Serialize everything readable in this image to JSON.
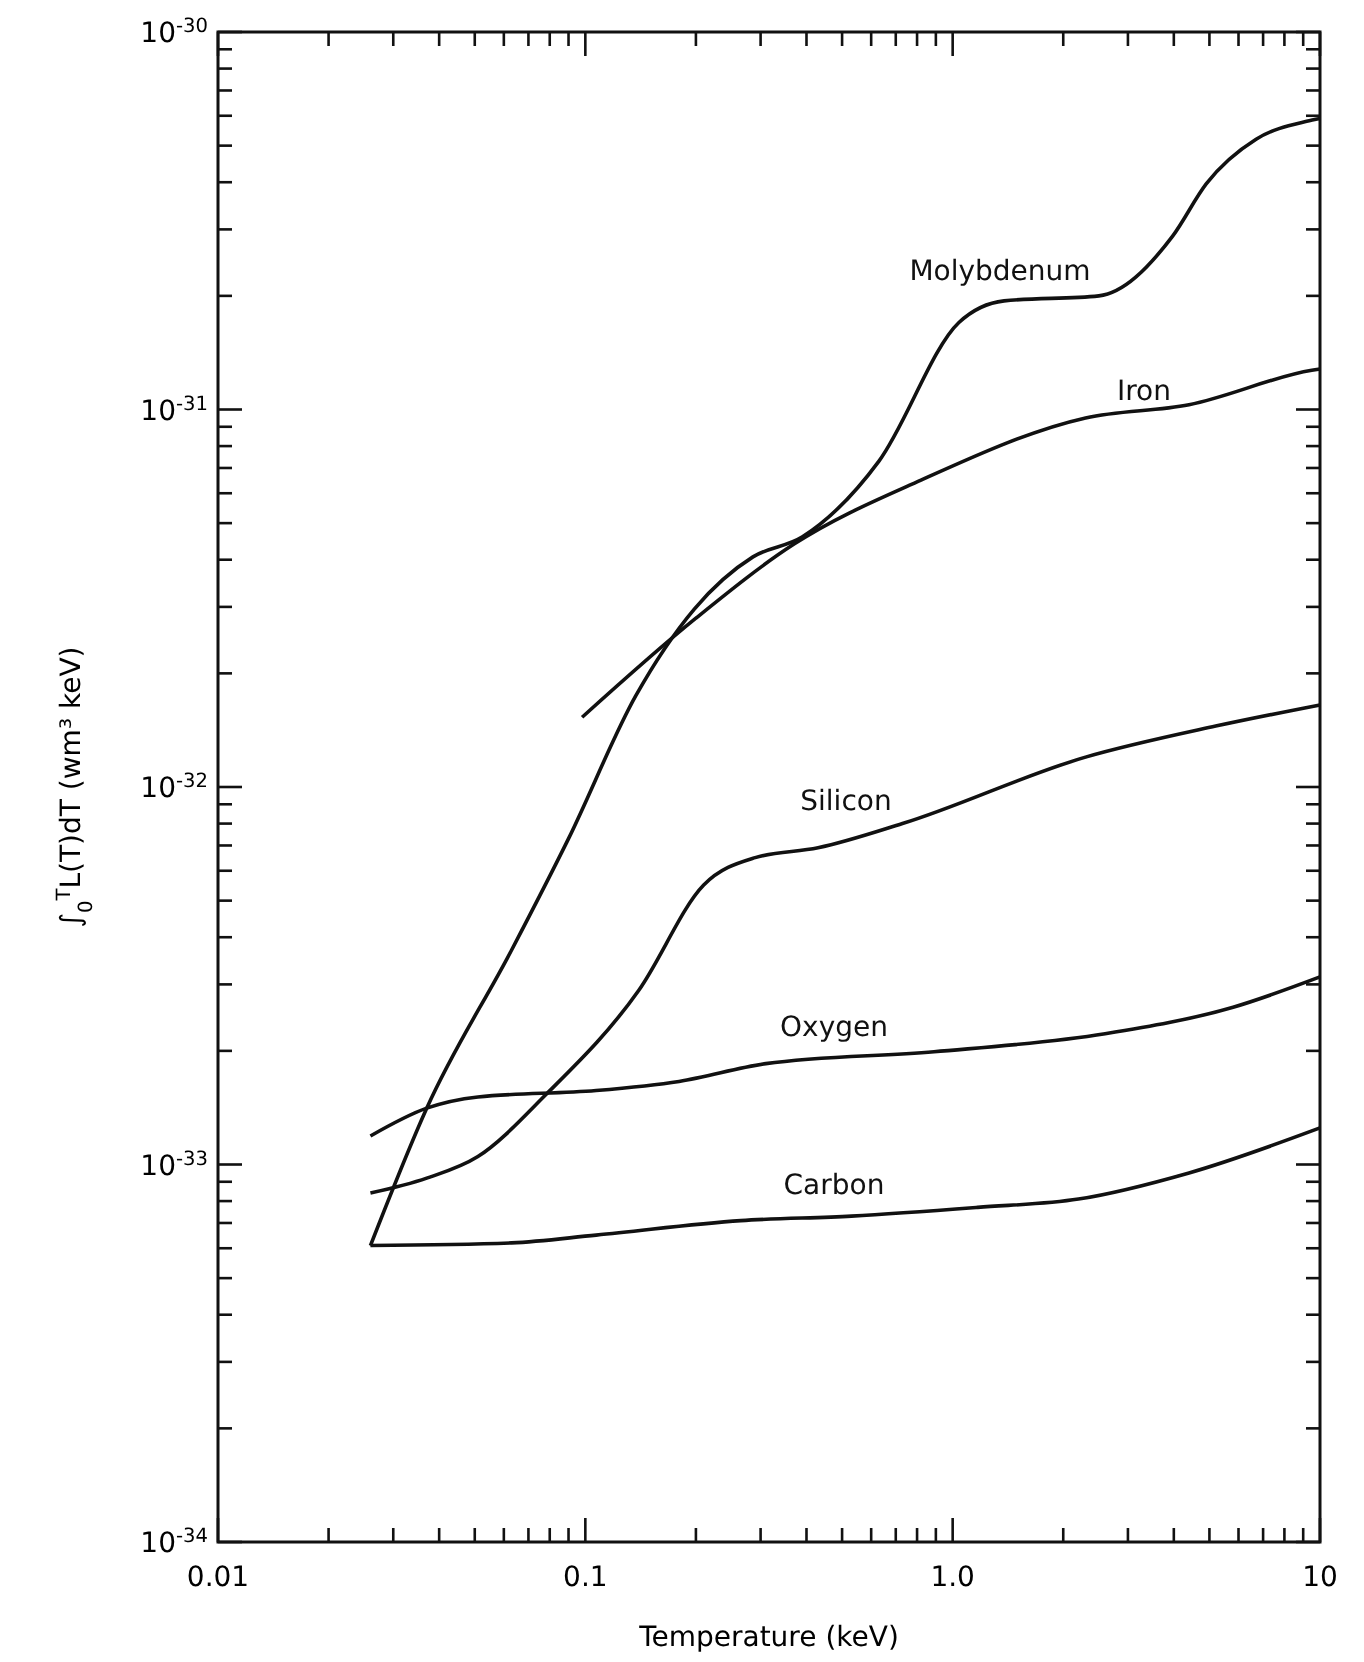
{
  "chart_data": {
    "type": "line",
    "xlabel": "Temperature (keV)",
    "ylabel": "∫$_{0}$$^{T}$L(T)dT (wm³ keV)",
    "log": "xy",
    "grid": false,
    "marker": "none",
    "line_style": "solid",
    "xlim": [
      0.01,
      10
    ],
    "ylim": [
      1e-34,
      1e-30
    ],
    "xticks": [
      {
        "value": 0.01,
        "label": "0.01"
      },
      {
        "value": 0.02,
        "label": null
      },
      {
        "value": 0.03,
        "label": null
      },
      {
        "value": 0.04,
        "label": null
      },
      {
        "value": 0.05,
        "label": null
      },
      {
        "value": 0.06,
        "label": null
      },
      {
        "value": 0.07,
        "label": null
      },
      {
        "value": 0.08,
        "label": null
      },
      {
        "value": 0.09,
        "label": null
      },
      {
        "value": 0.1,
        "label": "0.1"
      },
      {
        "value": 0.2,
        "label": null
      },
      {
        "value": 0.3,
        "label": null
      },
      {
        "value": 0.4,
        "label": null
      },
      {
        "value": 0.5,
        "label": null
      },
      {
        "value": 0.6,
        "label": null
      },
      {
        "value": 0.7,
        "label": null
      },
      {
        "value": 0.8,
        "label": null
      },
      {
        "value": 0.9,
        "label": null
      },
      {
        "value": 1,
        "label": "1.0"
      },
      {
        "value": 2,
        "label": null
      },
      {
        "value": 3,
        "label": null
      },
      {
        "value": 4,
        "label": null
      },
      {
        "value": 5,
        "label": null
      },
      {
        "value": 6,
        "label": null
      },
      {
        "value": 7,
        "label": null
      },
      {
        "value": 8,
        "label": null
      },
      {
        "value": 9,
        "label": null
      },
      {
        "value": 10,
        "label": "10"
      }
    ],
    "yticks": [
      {
        "value": 1e-34,
        "label": "10$^{-34}$"
      },
      {
        "value": 2e-34,
        "label": null
      },
      {
        "value": 3e-34,
        "label": null
      },
      {
        "value": 4e-34,
        "label": null
      },
      {
        "value": 5e-34,
        "label": null
      },
      {
        "value": 6e-34,
        "label": null
      },
      {
        "value": 7e-34,
        "label": null
      },
      {
        "value": 8e-34,
        "label": null
      },
      {
        "value": 9e-34,
        "label": null
      },
      {
        "value": 1e-33,
        "label": "10$^{-33}$"
      },
      {
        "value": 2e-33,
        "label": null
      },
      {
        "value": 3e-33,
        "label": null
      },
      {
        "value": 4e-33,
        "label": null
      },
      {
        "value": 5e-33,
        "label": null
      },
      {
        "value": 6e-33,
        "label": null
      },
      {
        "value": 7e-33,
        "label": null
      },
      {
        "value": 8e-33,
        "label": null
      },
      {
        "value": 9e-33,
        "label": null
      },
      {
        "value": 1e-32,
        "label": "10$^{-32}$"
      },
      {
        "value": 2e-32,
        "label": null
      },
      {
        "value": 3e-32,
        "label": null
      },
      {
        "value": 4e-32,
        "label": null
      },
      {
        "value": 5e-32,
        "label": null
      },
      {
        "value": 6e-32,
        "label": null
      },
      {
        "value": 7e-32,
        "label": null
      },
      {
        "value": 8e-32,
        "label": null
      },
      {
        "value": 9e-32,
        "label": null
      },
      {
        "value": 1e-31,
        "label": "10$^{-31}$"
      },
      {
        "value": 2e-31,
        "label": null
      },
      {
        "value": 3e-31,
        "label": null
      },
      {
        "value": 4e-31,
        "label": null
      },
      {
        "value": 5e-31,
        "label": null
      },
      {
        "value": 6e-31,
        "label": null
      },
      {
        "value": 7e-31,
        "label": null
      },
      {
        "value": 8e-31,
        "label": null
      },
      {
        "value": 9e-31,
        "label": null
      },
      {
        "value": 1e-30,
        "label": "10$^{-30}$"
      }
    ],
    "series": [
      {
        "name": "Molybdenum",
        "color": "#111111",
        "x": [
          0.026,
          0.037,
          0.063,
          0.09,
          0.137,
          0.198,
          0.286,
          0.39,
          0.63,
          1.04,
          1.38,
          2.5,
          3.97,
          4.9,
          6.7,
          9.2,
          10
        ],
        "values": [
          6.1e-34,
          1.41e-33,
          3.7e-33,
          7.3e-33,
          1.74e-32,
          2.96e-32,
          4.07e-32,
          4.6e-32,
          7.3e-32,
          1.7e-31,
          1.94e-31,
          2e-31,
          2.88e-31,
          3.96e-31,
          5.2e-31,
          5.8e-31,
          5.9e-31
        ]
      },
      {
        "name": "Iron",
        "color": "#111111",
        "x": [
          0.098,
          0.2,
          0.37,
          0.82,
          2.3,
          4.4,
          9.5,
          10
        ],
        "values": [
          1.53e-32,
          2.8e-32,
          4.4e-32,
          6.5e-32,
          9.5e-32,
          1.03e-31,
          1.27e-31,
          1.28e-31
        ]
      },
      {
        "name": "Silicon",
        "color": "#111111",
        "x": [
          0.026,
          0.037,
          0.051,
          0.078,
          0.14,
          0.21,
          0.29,
          0.43,
          0.73,
          2.3,
          5.2,
          10
        ],
        "values": [
          8.4e-34,
          9.2e-34,
          1.05e-33,
          1.53e-33,
          2.9e-33,
          5.5e-33,
          6.5e-33,
          6.9e-33,
          8e-33,
          1.2e-32,
          1.45e-32,
          1.65e-32
        ]
      },
      {
        "name": "Oxygen",
        "color": "#111111",
        "x": [
          0.026,
          0.037,
          0.051,
          0.107,
          0.18,
          0.31,
          0.89,
          2.6,
          5.8,
          10
        ],
        "values": [
          1.19e-33,
          1.41e-33,
          1.51e-33,
          1.57e-33,
          1.66e-33,
          1.85e-33,
          1.99e-33,
          2.22e-33,
          2.61e-33,
          3.14e-33
        ]
      },
      {
        "name": "Carbon",
        "color": "#111111",
        "x": [
          0.026,
          0.063,
          0.107,
          0.265,
          0.53,
          1.17,
          2.2,
          4.4,
          10
        ],
        "values": [
          6.1e-34,
          6.2e-34,
          6.5e-34,
          7.1e-34,
          7.3e-34,
          7.7e-34,
          8.1e-34,
          9.5e-34,
          1.25e-33
        ]
      }
    ]
  }
}
